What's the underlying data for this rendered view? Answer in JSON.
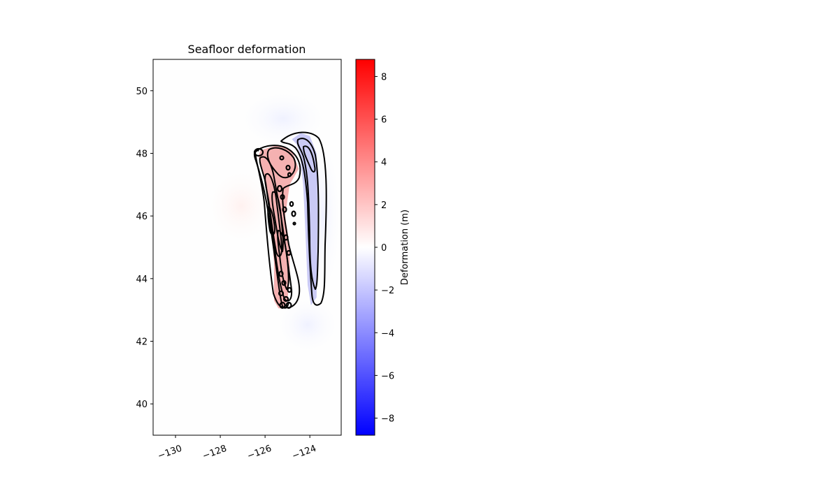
{
  "chart_data": {
    "type": "heatmap",
    "title": "Seafloor deformation",
    "xlabel": "",
    "ylabel": "",
    "xlim": [
      -131,
      -122.6
    ],
    "ylim": [
      39,
      51
    ],
    "x_ticks": [
      -130,
      -128,
      -126,
      -124
    ],
    "x_tick_labels": [
      "−130",
      "−128",
      "−126",
      "−124"
    ],
    "y_ticks": [
      40,
      42,
      44,
      46,
      48,
      50
    ],
    "y_tick_labels": [
      "40",
      "42",
      "44",
      "46",
      "48",
      "50"
    ],
    "colorbar": {
      "label": "Deformation (m)",
      "colormap": "bwr",
      "range": [
        -8.8,
        8.8
      ],
      "ticks": [
        -8,
        -6,
        -4,
        -2,
        0,
        2,
        4,
        6,
        8
      ],
      "tick_labels": [
        "−8",
        "−6",
        "−4",
        "−2",
        "0",
        "2",
        "4",
        "6",
        "8"
      ],
      "colors": {
        "min": "#0000ff",
        "mid": "#ffffff",
        "max": "#ff0000"
      }
    },
    "grid": false,
    "regions": [
      {
        "name": "uplift-zone",
        "sign": "positive",
        "approx_max_value": 3.5,
        "color": "#f4a8a8",
        "outline": [
          [
            -126.2,
            48.1
          ],
          [
            -125.5,
            48.25
          ],
          [
            -124.8,
            48.1
          ],
          [
            -124.5,
            47.5
          ],
          [
            -124.9,
            47.0
          ],
          [
            -125.1,
            46.0
          ],
          [
            -124.9,
            45.0
          ],
          [
            -124.9,
            44.0
          ],
          [
            -125.0,
            43.3
          ],
          [
            -125.2,
            43.05
          ],
          [
            -125.4,
            43.05
          ],
          [
            -125.6,
            43.3
          ],
          [
            -125.6,
            44.5
          ],
          [
            -125.7,
            45.5
          ],
          [
            -125.9,
            46.6
          ],
          [
            -126.1,
            47.4
          ],
          [
            -126.3,
            47.9
          ]
        ]
      },
      {
        "name": "subsidence-zone",
        "sign": "negative",
        "approx_min_value": -2.5,
        "color": "#c4c4f4",
        "outline": [
          [
            -124.8,
            48.45
          ],
          [
            -124.4,
            48.65
          ],
          [
            -124.0,
            48.55
          ],
          [
            -123.7,
            48.0
          ],
          [
            -123.65,
            46.0
          ],
          [
            -123.7,
            43.4
          ],
          [
            -123.95,
            43.15
          ],
          [
            -124.1,
            43.8
          ],
          [
            -124.2,
            45.5
          ],
          [
            -124.3,
            47.0
          ],
          [
            -124.45,
            48.0
          ],
          [
            -124.6,
            48.3
          ]
        ]
      }
    ],
    "contour_levels": [
      -4,
      -2,
      -0.5,
      0.5,
      1,
      2,
      3
    ]
  }
}
